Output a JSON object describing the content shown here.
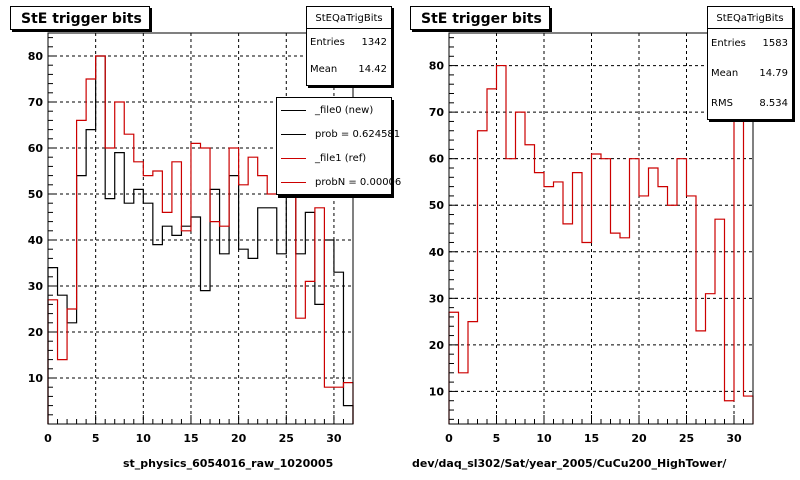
{
  "chart_data": [
    {
      "type": "histogram",
      "title": "StE trigger bits",
      "xlabel": "st_physics_6054016_raw_1020005",
      "ylabel": "",
      "xlim": [
        0,
        32
      ],
      "ylim": [
        0,
        85
      ],
      "xticks": [
        0,
        5,
        10,
        15,
        20,
        25,
        30
      ],
      "yticks": [
        10,
        20,
        30,
        40,
        50,
        60,
        70,
        80
      ],
      "grid": true,
      "stats": {
        "name": "StEQaTrigBits",
        "entries_label": "Entries",
        "entries": "1342",
        "mean_label": "Mean",
        "mean": "14.42"
      },
      "legend_position": "top-right",
      "series": [
        {
          "name": "_file0 (new)",
          "color": "#000000",
          "values": [
            34,
            28,
            22,
            54,
            64,
            80,
            49,
            59,
            48,
            51,
            48,
            39,
            43,
            41,
            43,
            45,
            29,
            51,
            37,
            54,
            38,
            36,
            47,
            47,
            37,
            50,
            37,
            46,
            26,
            40,
            33,
            4
          ]
        },
        {
          "name": "_file1 (ref)",
          "color": "#cc0000",
          "values": [
            27,
            14,
            25,
            66,
            75,
            80,
            60,
            70,
            63,
            57,
            54,
            55,
            46,
            57,
            42,
            61,
            60,
            44,
            43,
            60,
            52,
            58,
            54,
            50,
            60,
            52,
            23,
            31,
            47,
            8,
            8,
            9
          ]
        }
      ]
    },
    {
      "type": "histogram",
      "title": "StE trigger bits",
      "xlabel": "dev/daq_sl302/Sat/year_2005/CuCu200_HighTower/",
      "ylabel": "",
      "xlim": [
        0,
        32
      ],
      "ylim": [
        3,
        87
      ],
      "xticks": [
        0,
        5,
        10,
        15,
        20,
        25,
        30
      ],
      "yticks": [
        10,
        20,
        30,
        40,
        50,
        60,
        70,
        80
      ],
      "grid": true,
      "stats": {
        "name": "StEQaTrigBits",
        "entries_label": "Entries",
        "entries": "1583",
        "mean_label": "Mean",
        "mean": "14.79",
        "rms_label": "RMS",
        "rms": "8.534"
      },
      "series": [
        {
          "name": "",
          "color": "#cc0000",
          "values": [
            27,
            14,
            25,
            66,
            75,
            80,
            60,
            70,
            63,
            57,
            54,
            55,
            46,
            57,
            42,
            61,
            60,
            44,
            43,
            60,
            52,
            58,
            54,
            50,
            60,
            52,
            23,
            31,
            47,
            8,
            80,
            9
          ]
        }
      ]
    }
  ],
  "legend": {
    "entries": [
      {
        "label": "_file0 (new)"
      },
      {
        "label": "prob = 0.624581"
      },
      {
        "label": "_file1 (ref)"
      },
      {
        "label": "probN = 0.00006"
      }
    ],
    "colors": {
      "new": "#000000",
      "ref": "#cc0000"
    }
  }
}
